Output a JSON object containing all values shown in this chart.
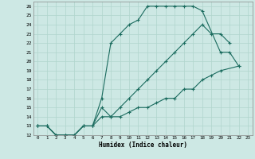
{
  "xlabel": "Humidex (Indice chaleur)",
  "bg_color": "#cde8e4",
  "grid_color": "#b0d5cc",
  "line_color": "#1a6b5e",
  "xlim": [
    -0.5,
    23.5
  ],
  "ylim": [
    12,
    26.5
  ],
  "line1_x": [
    0,
    1,
    2,
    3,
    4,
    5,
    6,
    7,
    8,
    9,
    10,
    11,
    12,
    13,
    14,
    15,
    16,
    17,
    18,
    20,
    21,
    22
  ],
  "line1_y": [
    13,
    13,
    12,
    12,
    12,
    13,
    13,
    16,
    22,
    23,
    24,
    24.5,
    26,
    26,
    26,
    26,
    26,
    26,
    25.5,
    21,
    21,
    19.5
  ],
  "line2_x": [
    0,
    1,
    2,
    3,
    4,
    5,
    6,
    7,
    8,
    9,
    10,
    11,
    12,
    13,
    14,
    15,
    16,
    17,
    18,
    19,
    20,
    21
  ],
  "line2_y": [
    13,
    13,
    12,
    12,
    12,
    13,
    13,
    15,
    14,
    15,
    16,
    17,
    18,
    19,
    20,
    21,
    22,
    23,
    24,
    23,
    23,
    22
  ],
  "line3_x": [
    0,
    1,
    2,
    3,
    4,
    5,
    6,
    7,
    8,
    9,
    10,
    11,
    12,
    13,
    14,
    15,
    16,
    17,
    18,
    19,
    20,
    22
  ],
  "line3_y": [
    13,
    13,
    12,
    12,
    12,
    13,
    13,
    14,
    14,
    14,
    14.5,
    15,
    15,
    15.5,
    16,
    16,
    17,
    17,
    18,
    18.5,
    19,
    19.5
  ]
}
